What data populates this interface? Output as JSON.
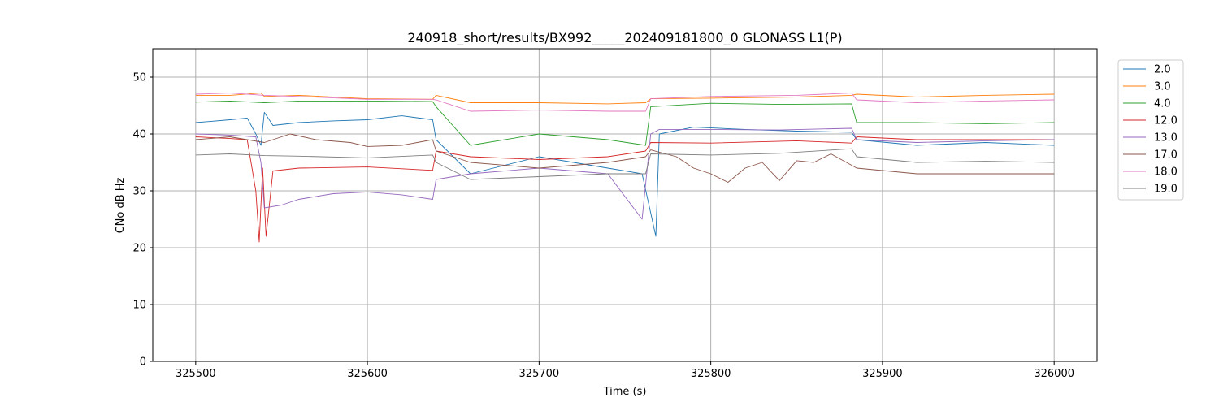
{
  "chart_data": {
    "type": "line",
    "title": "240918_short/results/BX992_____202409181800_0 GLONASS L1(P)",
    "xlabel": "Time (s)",
    "ylabel": "CNo dB Hz",
    "xlim": [
      325475,
      326025
    ],
    "ylim": [
      0,
      55
    ],
    "xticks": [
      325500,
      325600,
      325700,
      325800,
      325900,
      326000
    ],
    "yticks": [
      0,
      10,
      20,
      30,
      40,
      50
    ],
    "grid": true,
    "legend_position": "right-outside-top",
    "series": [
      {
        "name": "2.0",
        "color": "#1f77b4",
        "x": [
          325500,
          325520,
          325530,
          325535,
          325538,
          325540,
          325545,
          325560,
          325580,
          325600,
          325620,
          325638,
          325640,
          325660,
          325700,
          325740,
          325760,
          325768,
          325770,
          325790,
          325820,
          325850,
          325882,
          325885,
          325920,
          325960,
          326000
        ],
        "y": [
          42,
          42.5,
          42.8,
          40,
          38,
          43.8,
          41.5,
          42,
          42.3,
          42.5,
          43.2,
          42.5,
          39,
          33,
          36,
          34,
          33,
          22,
          40,
          41.2,
          40.8,
          40.5,
          40.3,
          39,
          38,
          38.5,
          38
        ]
      },
      {
        "name": "3.0",
        "color": "#ff7f0e",
        "x": [
          325500,
          325520,
          325538,
          325540,
          325560,
          325600,
          325638,
          325640,
          325660,
          325700,
          325740,
          325762,
          325765,
          325800,
          325850,
          325882,
          325885,
          325920,
          325960,
          326000
        ],
        "y": [
          46.8,
          46.8,
          47.2,
          46.6,
          46.8,
          46.2,
          46.1,
          46.8,
          45.5,
          45.5,
          45.3,
          45.5,
          46.2,
          46.3,
          46.5,
          46.8,
          47,
          46.5,
          46.8,
          47
        ]
      },
      {
        "name": "4.0",
        "color": "#2ca02c",
        "x": [
          325500,
          325520,
          325540,
          325560,
          325600,
          325638,
          325640,
          325660,
          325700,
          325740,
          325762,
          325765,
          325800,
          325840,
          325882,
          325885,
          325920,
          325960,
          326000
        ],
        "y": [
          45.6,
          45.8,
          45.5,
          45.8,
          45.8,
          45.7,
          44.8,
          38,
          40,
          39,
          38,
          44.8,
          45.4,
          45.2,
          45.3,
          42,
          42,
          41.8,
          42
        ]
      },
      {
        "name": "12.0",
        "color": "#d62728",
        "x": [
          325500,
          325520,
          325530,
          325535,
          325537,
          325539,
          325541,
          325545,
          325560,
          325600,
          325638,
          325640,
          325660,
          325700,
          325740,
          325762,
          325765,
          325800,
          325850,
          325882,
          325885,
          325920,
          325960,
          326000
        ],
        "y": [
          39.5,
          39.2,
          39,
          30,
          21,
          34,
          22,
          33.5,
          34,
          34.2,
          33.6,
          37,
          36,
          35.5,
          36,
          37,
          38.5,
          38.4,
          38.8,
          38.4,
          39.5,
          39,
          39,
          39
        ]
      },
      {
        "name": "13.0",
        "color": "#9467bd",
        "x": [
          325500,
          325520,
          325535,
          325538,
          325540,
          325550,
          325560,
          325580,
          325600,
          325620,
          325638,
          325640,
          325660,
          325700,
          325740,
          325760,
          325765,
          325770,
          325800,
          325840,
          325882,
          325885,
          325920,
          325960,
          326000
        ],
        "y": [
          40,
          39.8,
          39.5,
          35,
          27,
          27.5,
          28.5,
          29.5,
          29.8,
          29.3,
          28.5,
          32,
          33,
          34,
          33,
          25,
          40,
          40.8,
          40.8,
          40.7,
          41,
          39,
          38.5,
          38.8,
          39
        ]
      },
      {
        "name": "17.0",
        "color": "#8c564b",
        "x": [
          325500,
          325520,
          325540,
          325555,
          325570,
          325590,
          325600,
          325620,
          325638,
          325640,
          325660,
          325700,
          325740,
          325762,
          325765,
          325780,
          325790,
          325800,
          325810,
          325820,
          325830,
          325840,
          325850,
          325860,
          325870,
          325882,
          325885,
          325920,
          325960,
          326000
        ],
        "y": [
          39,
          39.5,
          38.5,
          40,
          39,
          38.5,
          37.8,
          38,
          39,
          37,
          35,
          34,
          35,
          36,
          37.2,
          36,
          34,
          33,
          31.5,
          34,
          35,
          31.8,
          35.3,
          35,
          36.5,
          34.5,
          34,
          33,
          33,
          33
        ]
      },
      {
        "name": "18.0",
        "color": "#e377c2",
        "x": [
          325500,
          325520,
          325540,
          325560,
          325600,
          325638,
          325640,
          325660,
          325700,
          325740,
          325762,
          325765,
          325800,
          325850,
          325882,
          325885,
          325920,
          325960,
          326000
        ],
        "y": [
          47,
          47.2,
          46.8,
          46.6,
          46.1,
          46.1,
          46,
          44,
          44.2,
          44,
          44,
          46.2,
          46.6,
          46.8,
          47.2,
          46,
          45.5,
          45.8,
          46
        ]
      },
      {
        "name": "19.0",
        "color": "#7f7f7f",
        "x": [
          325500,
          325520,
          325540,
          325560,
          325600,
          325638,
          325640,
          325660,
          325700,
          325740,
          325762,
          325765,
          325800,
          325840,
          325882,
          325885,
          325920,
          325960,
          326000
        ],
        "y": [
          36.3,
          36.5,
          36.2,
          36.1,
          35.8,
          36.3,
          35,
          32,
          32.5,
          33,
          33,
          36.5,
          36.3,
          36.6,
          37.4,
          36,
          35,
          35.2,
          35
        ]
      }
    ]
  }
}
